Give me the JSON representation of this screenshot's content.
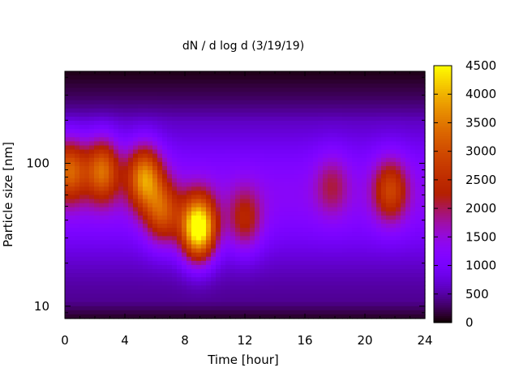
{
  "chart_data": {
    "type": "heatmap",
    "title": "dN / d log d (3/19/19)",
    "xlabel": "Time [hour]",
    "ylabel": "Particle size [nm]",
    "x_ticks": [
      0,
      4,
      8,
      12,
      16,
      20,
      24
    ],
    "xlim": [
      0,
      24
    ],
    "y_scale": "log",
    "ylim": [
      8.2,
      440
    ],
    "y_ticks": [
      10,
      100
    ],
    "colorbar": {
      "ticks": [
        0,
        500,
        1000,
        1500,
        2000,
        2500,
        3000,
        3500,
        4000,
        4500
      ],
      "range": [
        0,
        4500
      ],
      "colormap": "gnuplot",
      "colors": [
        "#000000",
        "#8d00ff",
        "#c81e00",
        "#ff8000",
        "#ffff00"
      ]
    },
    "grid": false,
    "legend": "colorbar-right",
    "background": 380,
    "blobs": [
      {
        "time": 0.3,
        "size": 90,
        "peak": 2500
      },
      {
        "time": 2.5,
        "size": 90,
        "peak": 2600
      },
      {
        "time": 5.3,
        "size": 80,
        "peak": 2900
      },
      {
        "time": 6.5,
        "size": 45,
        "peak": 2200
      },
      {
        "time": 8.9,
        "size": 35,
        "peak": 4300
      },
      {
        "time": 12.0,
        "size": 40,
        "peak": 1600
      },
      {
        "time": 17.8,
        "size": 70,
        "peak": 1200
      },
      {
        "time": 21.7,
        "size": 65,
        "peak": 2000
      }
    ]
  }
}
